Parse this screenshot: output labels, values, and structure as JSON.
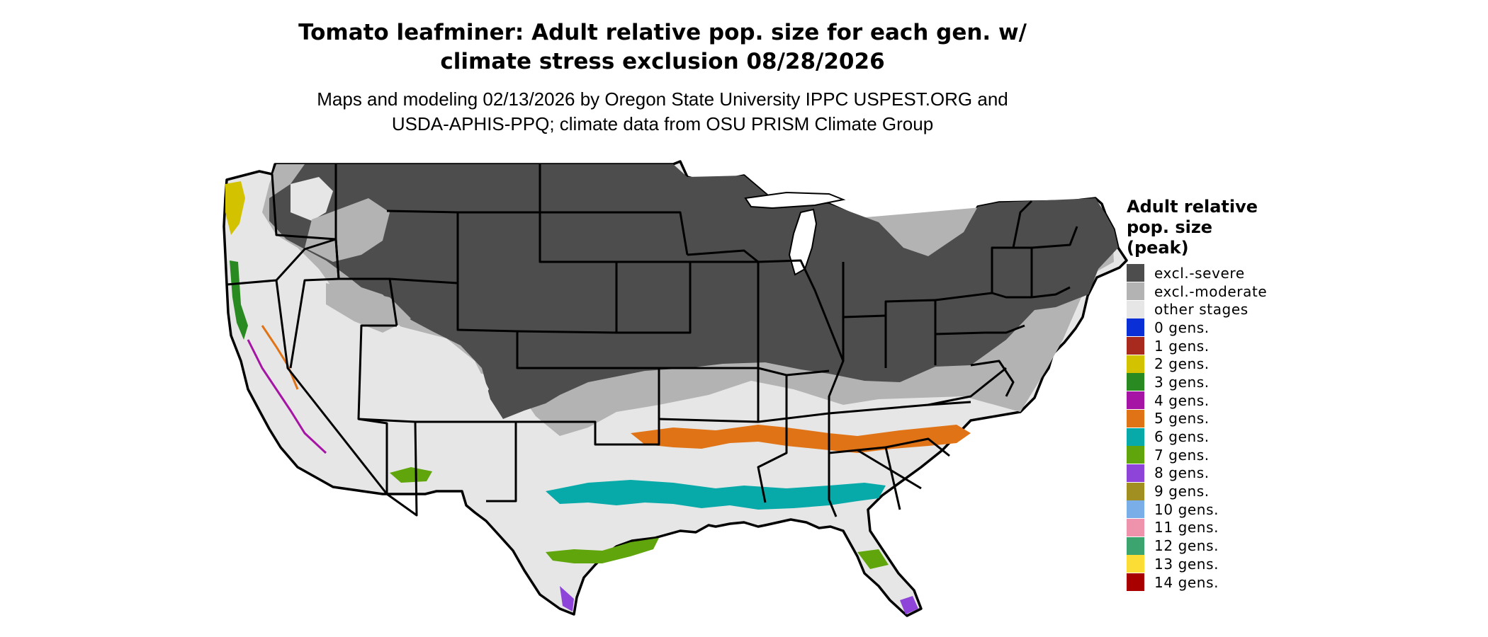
{
  "title": {
    "line1": "Tomato leafminer: Adult relative pop. size for each gen. w/",
    "line2": "climate stress exclusion 08/28/2026"
  },
  "subtitle": {
    "line1": "Maps and modeling 02/13/2026 by Oregon State University IPPC USPEST.ORG and",
    "line2": "USDA-APHIS-PPQ; climate data from OSU PRISM Climate Group"
  },
  "map": {
    "region": "contiguous United States",
    "colors": {
      "excl_severe": "#4d4d4d",
      "excl_moderate": "#b3b3b3",
      "other_stages": "#e6e6e6"
    }
  },
  "legend": {
    "title_line1": "Adult relative",
    "title_line2": "pop. size",
    "title_line3": "(peak)",
    "items": [
      {
        "label": "excl.-severe",
        "color": "#4d4d4d"
      },
      {
        "label": "excl.-moderate",
        "color": "#b3b3b3"
      },
      {
        "label": "other stages",
        "color": "#e6e6e6"
      },
      {
        "label": "0 gens.",
        "color": "#0b2fd6"
      },
      {
        "label": "1 gens.",
        "color": "#a82a1e"
      },
      {
        "label": "2 gens.",
        "color": "#d3c200"
      },
      {
        "label": "3 gens.",
        "color": "#2a8a22"
      },
      {
        "label": "4 gens.",
        "color": "#a514a5"
      },
      {
        "label": "5 gens.",
        "color": "#e07316"
      },
      {
        "label": "6 gens.",
        "color": "#08a9a9"
      },
      {
        "label": "7 gens.",
        "color": "#5fa50b"
      },
      {
        "label": "8 gens.",
        "color": "#8e44d9"
      },
      {
        "label": "9 gens.",
        "color": "#a28f22"
      },
      {
        "label": "10 gens.",
        "color": "#7aaee8"
      },
      {
        "label": "11 gens.",
        "color": "#ee93ab"
      },
      {
        "label": "12 gens.",
        "color": "#3ba46f"
      },
      {
        "label": "13 gens.",
        "color": "#fbdd35"
      },
      {
        "label": "14 gens.",
        "color": "#a80000"
      }
    ]
  }
}
